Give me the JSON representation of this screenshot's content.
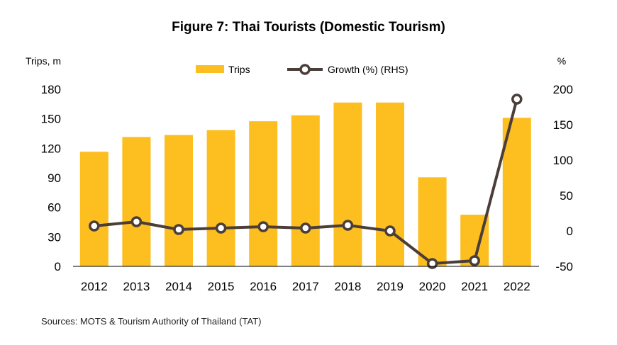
{
  "title": "Figure 7: Thai Tourists (Domestic Tourism)",
  "source": "Sources: MOTS & Tourism Authority of Thailand (TAT)",
  "colors": {
    "bar": "#FDBE1F",
    "line": "#4B3E39",
    "marker_fill": "#FFFFFF"
  },
  "chart_data": {
    "type": "bar+line",
    "categories": [
      "2012",
      "2013",
      "2014",
      "2015",
      "2016",
      "2017",
      "2018",
      "2019",
      "2020",
      "2021",
      "2022"
    ],
    "series": [
      {
        "name": "Trips",
        "type": "bar",
        "axis": "left",
        "values": [
          116.5,
          131.5,
          133.5,
          138.5,
          147.5,
          153.5,
          166.5,
          166.5,
          90.5,
          52.5,
          151
        ]
      },
      {
        "name": "Growth (%) (RHS)",
        "type": "line",
        "axis": "right",
        "values": [
          7,
          13,
          2,
          4,
          6,
          4,
          8,
          0,
          -46,
          -42,
          186
        ]
      }
    ],
    "y_left": {
      "label": "Trips, m",
      "min": 0,
      "max": 180,
      "ticks": [
        "0",
        "30",
        "60",
        "90",
        "120",
        "150",
        "180"
      ]
    },
    "y_right": {
      "label": "%",
      "min": -50,
      "max": 200,
      "ticks": [
        "-50",
        "0",
        "50",
        "100",
        "150",
        "200"
      ]
    },
    "grid": false,
    "legend_position": "top-center"
  }
}
